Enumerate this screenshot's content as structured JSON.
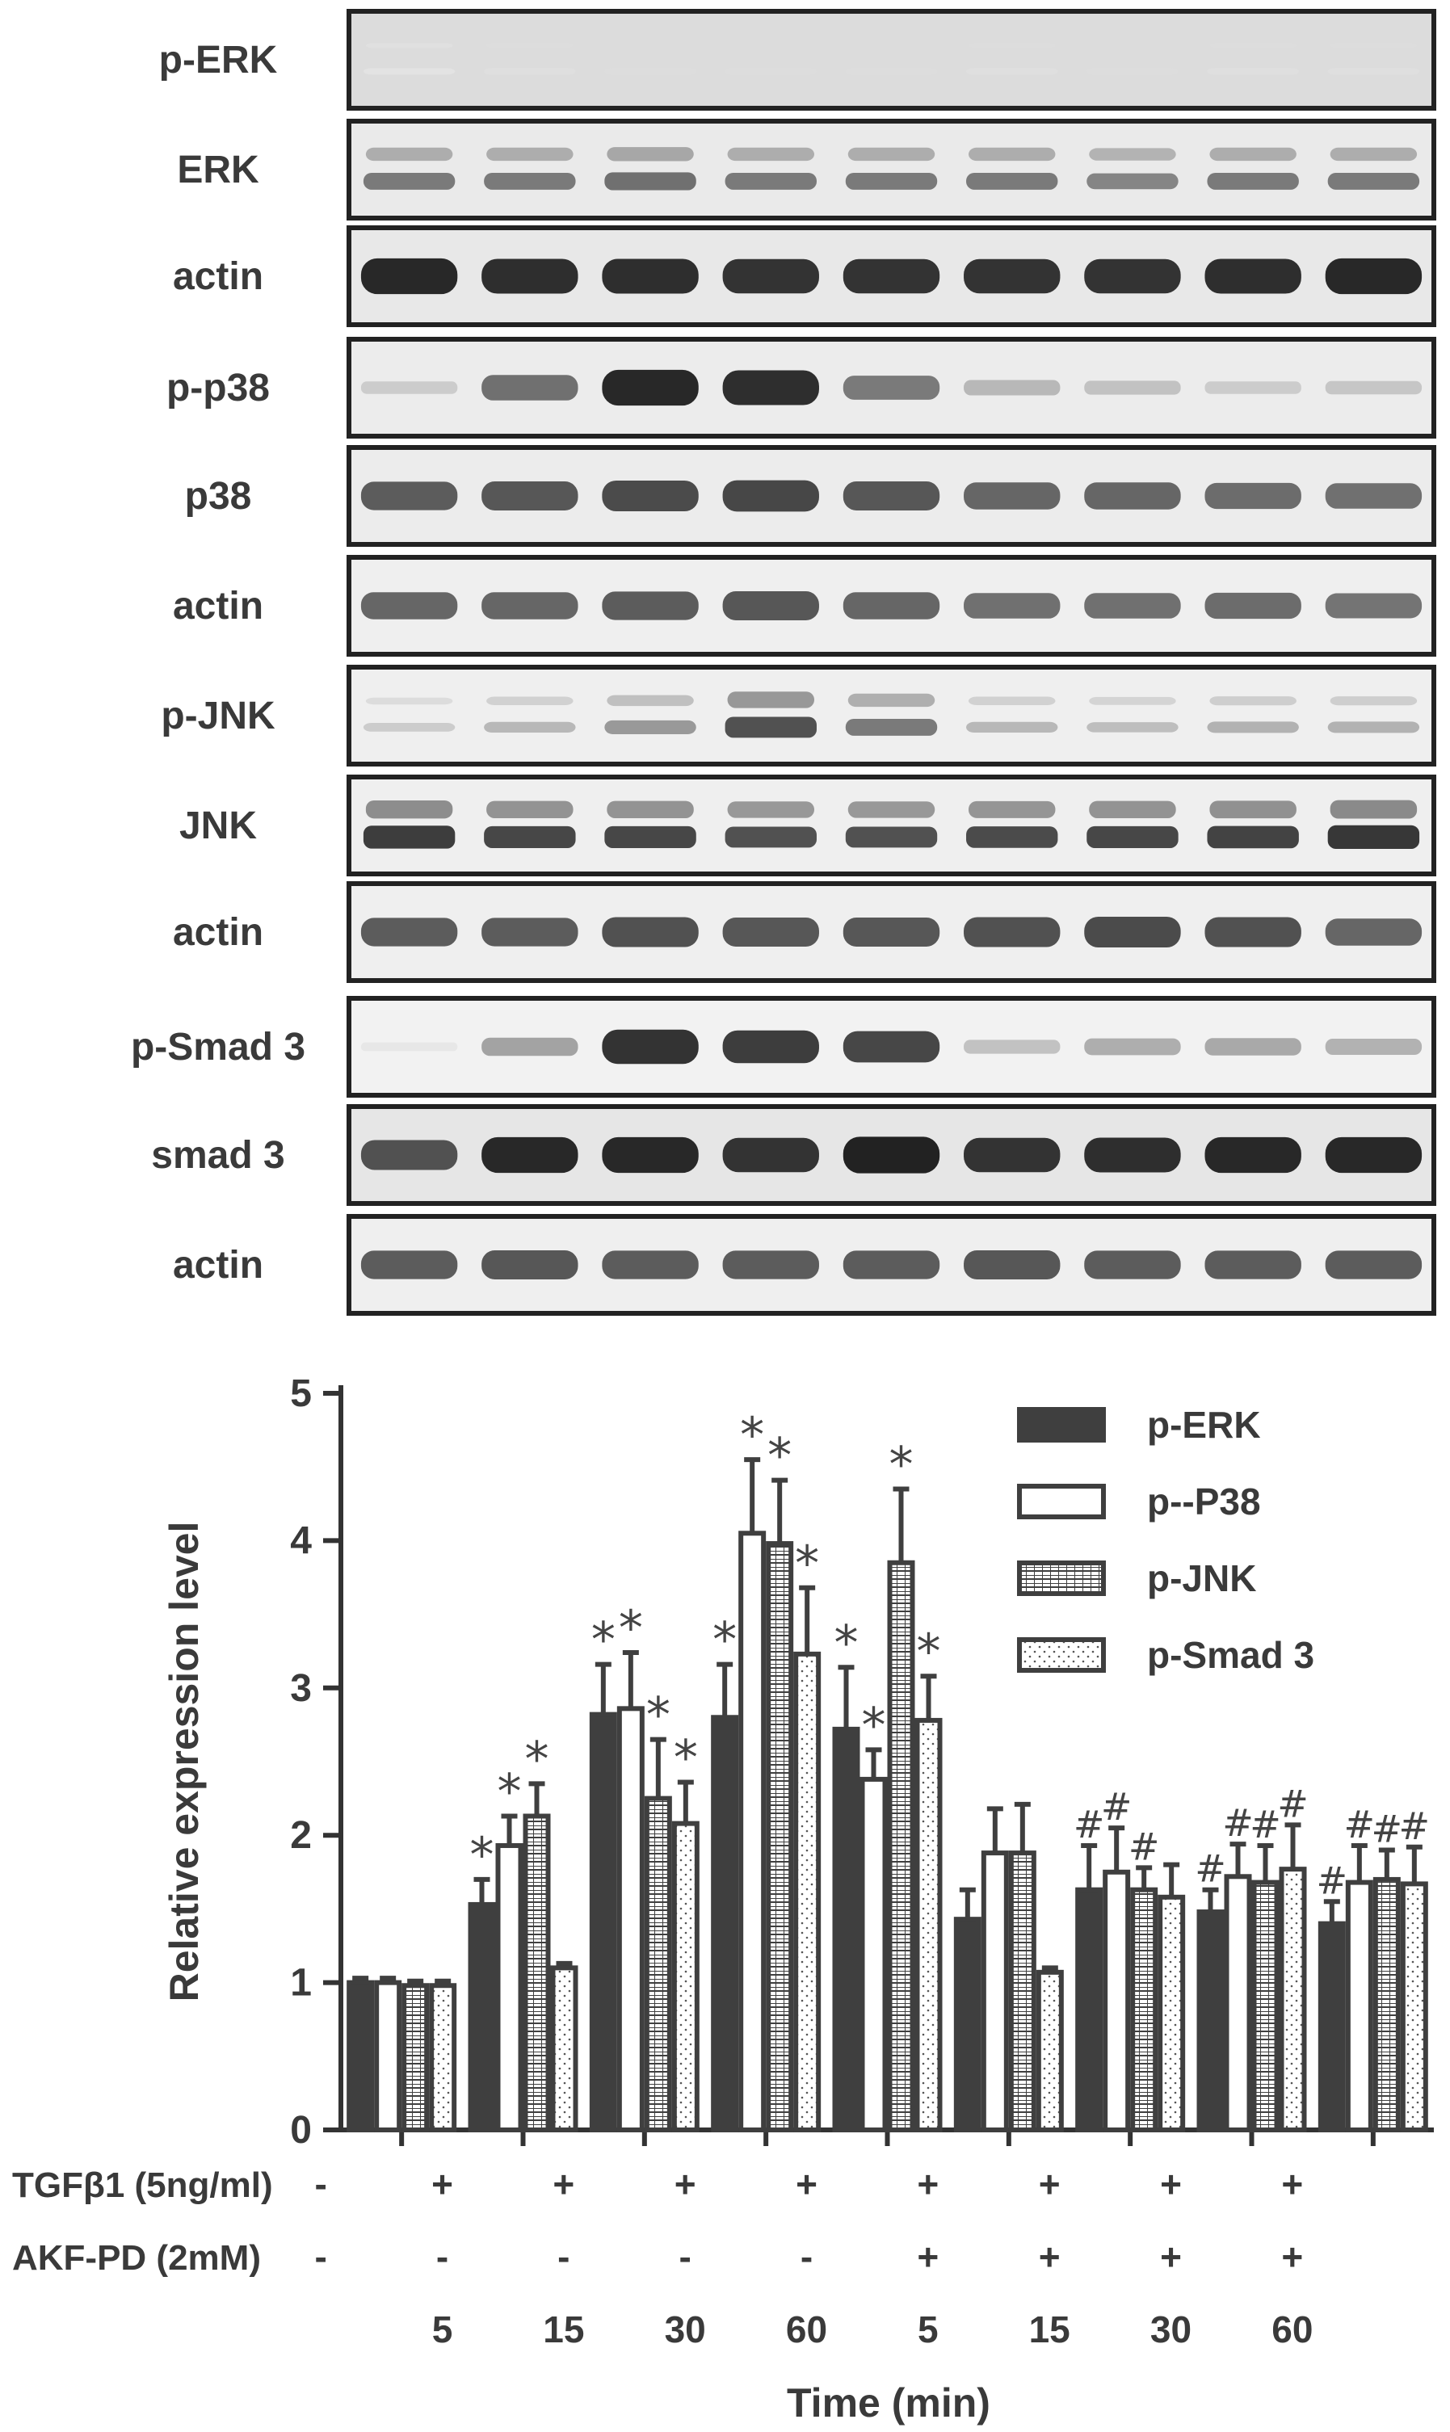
{
  "blots": [
    {
      "label": "p-ERK",
      "intensity": [
        0.04,
        0.06,
        0.07,
        0.07,
        0.07,
        0.06,
        0.07,
        0.06,
        0.06
      ],
      "double": true,
      "bg": "#dcdcdc"
    },
    {
      "label": "ERK",
      "intensity": [
        0.55,
        0.55,
        0.6,
        0.55,
        0.55,
        0.55,
        0.5,
        0.55,
        0.55
      ],
      "double": true,
      "bg": "#eaeaea"
    },
    {
      "label": "actin",
      "intensity": [
        0.95,
        0.92,
        0.92,
        0.9,
        0.9,
        0.9,
        0.9,
        0.92,
        0.95
      ],
      "double": false,
      "bg": "#e8e8e8"
    },
    {
      "label": "p-p38",
      "intensity": [
        0.15,
        0.6,
        0.95,
        0.92,
        0.55,
        0.25,
        0.2,
        0.15,
        0.18
      ],
      "double": false,
      "bg": "#ececec"
    },
    {
      "label": "p38",
      "intensity": [
        0.7,
        0.72,
        0.78,
        0.8,
        0.72,
        0.65,
        0.65,
        0.62,
        0.6
      ],
      "double": false,
      "bg": "#ececec"
    },
    {
      "label": "actin",
      "intensity": [
        0.65,
        0.65,
        0.7,
        0.72,
        0.65,
        0.6,
        0.6,
        0.62,
        0.58
      ],
      "double": false,
      "bg": "#efefef"
    },
    {
      "label": "p-JNK",
      "intensity": [
        0.15,
        0.25,
        0.4,
        0.75,
        0.55,
        0.25,
        0.22,
        0.28,
        0.28
      ],
      "double": true,
      "bg": "#efefef"
    },
    {
      "label": "JNK",
      "intensity": [
        0.85,
        0.8,
        0.8,
        0.75,
        0.75,
        0.78,
        0.8,
        0.82,
        0.88
      ],
      "double": true,
      "bg": "#efefef"
    },
    {
      "label": "actin",
      "intensity": [
        0.7,
        0.7,
        0.75,
        0.72,
        0.72,
        0.75,
        0.78,
        0.75,
        0.65
      ],
      "double": false,
      "bg": "#efefef"
    },
    {
      "label": "p-Smad 3",
      "intensity": [
        0.02,
        0.35,
        0.9,
        0.85,
        0.8,
        0.2,
        0.3,
        0.32,
        0.28
      ],
      "double": false,
      "bg": "#f2f2f2"
    },
    {
      "label": "smad 3",
      "intensity": [
        0.75,
        0.95,
        0.95,
        0.9,
        0.98,
        0.9,
        0.92,
        0.95,
        0.95
      ],
      "double": false,
      "bg": "#e6e6e6"
    },
    {
      "label": "actin",
      "intensity": [
        0.7,
        0.72,
        0.7,
        0.7,
        0.7,
        0.72,
        0.7,
        0.7,
        0.7
      ],
      "double": false,
      "bg": "#efefef"
    }
  ],
  "chart_data": {
    "type": "bar",
    "ylabel": "Relative expression level",
    "xlabel": "Time (min)",
    "ylim": [
      0,
      5
    ],
    "yticks": [
      0,
      1,
      2,
      3,
      4,
      5
    ],
    "categories": [
      "",
      "5",
      "15",
      "30",
      "60",
      "5",
      "15",
      "30",
      "60"
    ],
    "row_labels": [
      "TGFβ1 (5ng/ml)",
      "AKF-PD (2mM)"
    ],
    "tgf": [
      "-",
      "+",
      "+",
      "+",
      "+",
      "+",
      "+",
      "+",
      "+"
    ],
    "akf": [
      "-",
      "-",
      "-",
      "-",
      "-",
      "+",
      "+",
      "+",
      "+"
    ],
    "legend_position": "top-right",
    "series": [
      {
        "name": "p-ERK",
        "style": "solid",
        "values": [
          1.0,
          1.53,
          2.82,
          2.8,
          2.72,
          1.43,
          1.63,
          1.48,
          1.4
        ],
        "errors": [
          0.03,
          0.17,
          0.34,
          0.36,
          0.42,
          0.2,
          0.3,
          0.15,
          0.15
        ],
        "marks": [
          "",
          "*",
          "*",
          "*",
          "*",
          "",
          "#",
          "#",
          "#"
        ]
      },
      {
        "name": "p--P38",
        "style": "open",
        "values": [
          1.0,
          1.93,
          2.86,
          4.05,
          2.38,
          1.88,
          1.75,
          1.72,
          1.68
        ],
        "errors": [
          0.03,
          0.2,
          0.38,
          0.5,
          0.2,
          0.3,
          0.3,
          0.22,
          0.25
        ],
        "marks": [
          "",
          "*",
          "*",
          "*",
          "*",
          "",
          "#",
          "#",
          "#"
        ]
      },
      {
        "name": "p-JNK",
        "style": "grid",
        "values": [
          0.98,
          2.13,
          2.25,
          3.98,
          3.85,
          1.88,
          1.63,
          1.68,
          1.7
        ],
        "errors": [
          0.03,
          0.22,
          0.4,
          0.43,
          0.5,
          0.33,
          0.15,
          0.25,
          0.2
        ],
        "marks": [
          "",
          "*",
          "*",
          "*",
          "*",
          "",
          "#",
          "#",
          "#"
        ]
      },
      {
        "name": "p-Smad 3",
        "style": "dotted",
        "values": [
          0.98,
          1.1,
          2.08,
          3.23,
          2.78,
          1.07,
          1.58,
          1.77,
          1.67
        ],
        "errors": [
          0.03,
          0.03,
          0.28,
          0.45,
          0.3,
          0.03,
          0.22,
          0.3,
          0.25
        ],
        "marks": [
          "",
          "",
          "*",
          "*",
          "*",
          "",
          "",
          "#",
          "#"
        ]
      }
    ],
    "colors": {
      "dark": "#3f3f3f",
      "light": "#ffffff"
    }
  }
}
